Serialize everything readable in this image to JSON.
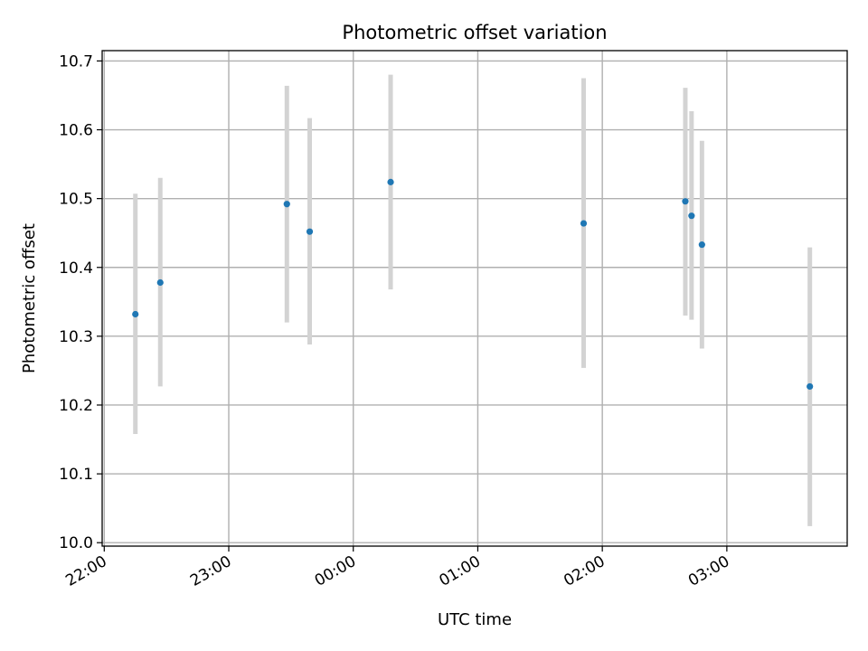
{
  "chart_data": {
    "type": "scatter",
    "title": "Photometric offset variation",
    "xlabel": "UTC time",
    "ylabel": "Photometric offset",
    "x_unit": "UTC time of night",
    "xlim": [
      "21:59",
      "03:58"
    ],
    "ylim": [
      9.995,
      10.715
    ],
    "grid": true,
    "x_ticks": [
      "22:00",
      "23:00",
      "00:00",
      "01:00",
      "02:00",
      "03:00"
    ],
    "y_ticks": [
      "10.0",
      "10.1",
      "10.2",
      "10.3",
      "10.4",
      "10.5",
      "10.6",
      "10.7"
    ],
    "points": [
      {
        "x": "22:15",
        "y": 10.332,
        "err_low": 10.158,
        "err_high": 10.507
      },
      {
        "x": "22:27",
        "y": 10.378,
        "err_low": 10.227,
        "err_high": 10.53
      },
      {
        "x": "23:28",
        "y": 10.492,
        "err_low": 10.32,
        "err_high": 10.664
      },
      {
        "x": "23:39",
        "y": 10.452,
        "err_low": 10.288,
        "err_high": 10.617
      },
      {
        "x": "00:18",
        "y": 10.524,
        "err_low": 10.368,
        "err_high": 10.68
      },
      {
        "x": "01:51",
        "y": 10.464,
        "err_low": 10.254,
        "err_high": 10.675
      },
      {
        "x": "02:40",
        "y": 10.496,
        "err_low": 10.33,
        "err_high": 10.661
      },
      {
        "x": "02:43",
        "y": 10.475,
        "err_low": 10.324,
        "err_high": 10.627
      },
      {
        "x": "02:48",
        "y": 10.433,
        "err_low": 10.282,
        "err_high": 10.584
      },
      {
        "x": "03:40",
        "y": 10.227,
        "err_low": 10.024,
        "err_high": 10.429
      }
    ],
    "colors": {
      "points": "#1f77b4",
      "errorbars": "#d3d3d3",
      "grid": "#b0b0b0"
    }
  }
}
